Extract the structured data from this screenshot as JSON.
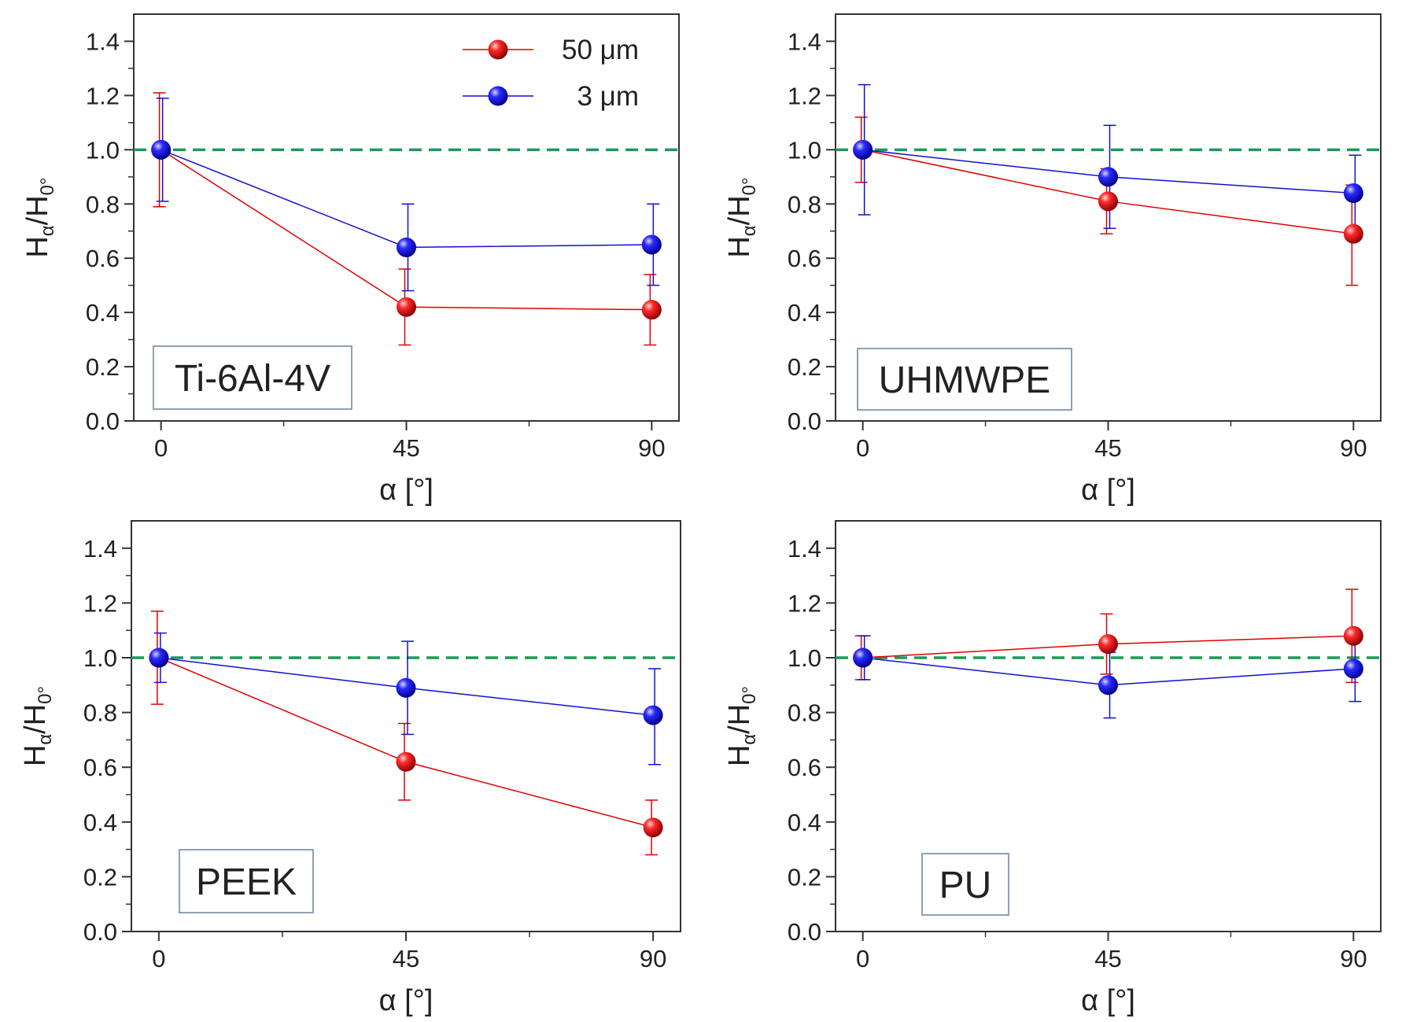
{
  "figure": {
    "colors": {
      "series_50um": "#e00000",
      "series_3um": "#1010d0",
      "reference_line": "#1a9a5a",
      "axes": "#333333",
      "label_box_border": "#8ea0b8"
    }
  },
  "legend": {
    "location": "top-right of first panel",
    "entries": [
      {
        "label": "50 μm",
        "color": "#e00000"
      },
      {
        "label": "3 μm",
        "color": "#1010d0"
      }
    ]
  },
  "chart_data": [
    {
      "type": "line",
      "panel_label": "Ti-6Al-4V",
      "xlabel": "α [°]",
      "ylabel_main": "H",
      "ylabel_sub1": "α",
      "ylabel_mid": "/H",
      "ylabel_sub2": "0°",
      "x": [
        0,
        45,
        90
      ],
      "x_tick_labels": [
        "0",
        "45",
        "90"
      ],
      "xlim": [
        -5,
        95
      ],
      "ylim": [
        0,
        1.5
      ],
      "y_tick_labels": [
        "0.0",
        "0.2",
        "0.4",
        "0.6",
        "0.8",
        "1.0",
        "1.2",
        "1.4"
      ],
      "reference_line_y": 1.0,
      "series": [
        {
          "name": "50 μm",
          "values": [
            1.0,
            0.42,
            0.41
          ],
          "err_low": [
            0.79,
            0.28,
            0.28
          ],
          "err_high": [
            1.21,
            0.56,
            0.54
          ]
        },
        {
          "name": "3 μm",
          "values": [
            1.0,
            0.64,
            0.65
          ],
          "err_low": [
            0.81,
            0.48,
            0.5
          ],
          "err_high": [
            1.19,
            0.8,
            0.8
          ]
        }
      ]
    },
    {
      "type": "line",
      "panel_label": "UHMWPE",
      "xlabel": "α [°]",
      "ylabel_main": "H",
      "ylabel_sub1": "α",
      "ylabel_mid": "/H",
      "ylabel_sub2": "0°",
      "x": [
        0,
        45,
        90
      ],
      "x_tick_labels": [
        "0",
        "45",
        "90"
      ],
      "xlim": [
        -5,
        95
      ],
      "ylim": [
        0,
        1.5
      ],
      "y_tick_labels": [
        "0.0",
        "0.2",
        "0.4",
        "0.6",
        "0.8",
        "1.0",
        "1.2",
        "1.4"
      ],
      "reference_line_y": 1.0,
      "series": [
        {
          "name": "50 μm",
          "values": [
            1.0,
            0.81,
            0.69
          ],
          "err_low": [
            0.88,
            0.69,
            0.5
          ],
          "err_high": [
            1.12,
            0.93,
            0.87
          ]
        },
        {
          "name": "3 μm",
          "values": [
            1.0,
            0.9,
            0.84
          ],
          "err_low": [
            0.76,
            0.71,
            0.69
          ],
          "err_high": [
            1.24,
            1.09,
            0.98
          ]
        }
      ]
    },
    {
      "type": "line",
      "panel_label": "PEEK",
      "xlabel": "α [°]",
      "ylabel_main": "H",
      "ylabel_sub1": "α",
      "ylabel_mid": "/H",
      "ylabel_sub2": "0°",
      "x": [
        0,
        45,
        90
      ],
      "x_tick_labels": [
        "0",
        "45",
        "90"
      ],
      "xlim": [
        -5,
        95
      ],
      "ylim": [
        0,
        1.5
      ],
      "y_tick_labels": [
        "0.0",
        "0.2",
        "0.4",
        "0.6",
        "0.8",
        "1.0",
        "1.2",
        "1.4"
      ],
      "reference_line_y": 1.0,
      "series": [
        {
          "name": "50 μm",
          "values": [
            1.0,
            0.62,
            0.38
          ],
          "err_low": [
            0.83,
            0.48,
            0.28
          ],
          "err_high": [
            1.17,
            0.76,
            0.48
          ]
        },
        {
          "name": "3 μm",
          "values": [
            1.0,
            0.89,
            0.79
          ],
          "err_low": [
            0.91,
            0.72,
            0.61
          ],
          "err_high": [
            1.09,
            1.06,
            0.96
          ]
        }
      ]
    },
    {
      "type": "line",
      "panel_label": "PU",
      "xlabel": "α [°]",
      "ylabel_main": "H",
      "ylabel_sub1": "α",
      "ylabel_mid": "/H",
      "ylabel_sub2": "0°",
      "x": [
        0,
        45,
        90
      ],
      "x_tick_labels": [
        "0",
        "45",
        "90"
      ],
      "xlim": [
        -5,
        95
      ],
      "ylim": [
        0,
        1.5
      ],
      "y_tick_labels": [
        "0.0",
        "0.2",
        "0.4",
        "0.6",
        "0.8",
        "1.0",
        "1.2",
        "1.4"
      ],
      "reference_line_y": 1.0,
      "series": [
        {
          "name": "50 μm",
          "values": [
            1.0,
            1.05,
            1.08
          ],
          "err_low": [
            0.92,
            0.94,
            0.91
          ],
          "err_high": [
            1.08,
            1.16,
            1.25
          ]
        },
        {
          "name": "3 μm",
          "values": [
            1.0,
            0.9,
            0.96
          ],
          "err_low": [
            0.92,
            0.78,
            0.84
          ],
          "err_high": [
            1.08,
            1.02,
            1.08
          ]
        }
      ]
    }
  ]
}
